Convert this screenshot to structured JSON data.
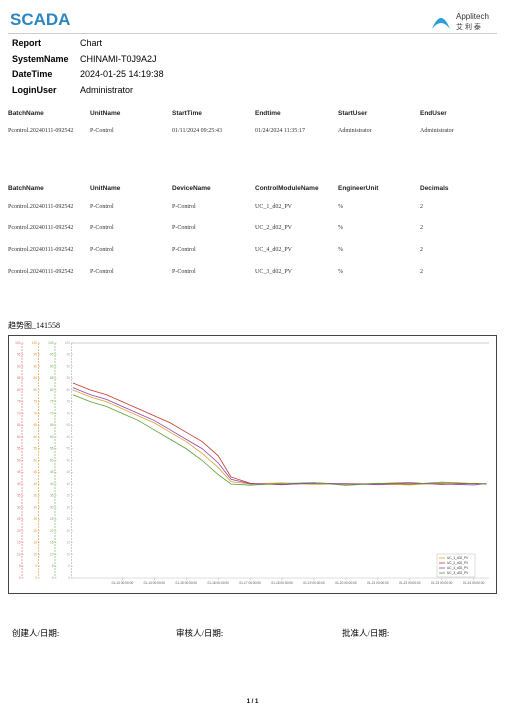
{
  "header": {
    "title": "SCADA",
    "logo_text": "Applitech",
    "logo_subtext": "艾 利 泰"
  },
  "info": [
    {
      "label": "Report",
      "value": "Chart"
    },
    {
      "label": "SystemName",
      "value": "CHINAMI-T0J9A2J"
    },
    {
      "label": "DateTime",
      "value": "2024-01-25  14:19:38"
    },
    {
      "label": "LoginUser",
      "value": "Administrator"
    }
  ],
  "batch_table": {
    "columns": [
      "BatchName",
      "UnitName",
      "StartTime",
      "Endtime",
      "StartUser",
      "EndUser"
    ],
    "rows": [
      [
        "Pcontrol.20240111-092542",
        "P-Control",
        "01/11/2024 09:25:43",
        "01/24/2024 11:35:17",
        "Administrator",
        "Administrator"
      ]
    ]
  },
  "device_table": {
    "columns": [
      "BatchName",
      "UnitName",
      "DeviceName",
      "ControlModuleName",
      "EngineerUnit",
      "Decimals"
    ],
    "rows": [
      [
        "Pcontrol.20240111-092542",
        "P-Control",
        "P-Control",
        "UC_1_d02_PV",
        "%",
        "2"
      ],
      [
        "Pcontrol.20240111-092542",
        "P-Control",
        "P-Control",
        "UC_2_d02_PV",
        "%",
        "2"
      ],
      [
        "Pcontrol.20240111-092542",
        "P-Control",
        "P-Control",
        "UC_4_d02_PV",
        "%",
        "2"
      ],
      [
        "Pcontrol.20240111-092542",
        "P-Control",
        "P-Control",
        "UC_3_d02_PV",
        "%",
        "2"
      ]
    ]
  },
  "chart_title": "趋势图_141558",
  "chart_data": {
    "type": "line",
    "x": [
      11.45,
      12,
      12.5,
      13,
      13.5,
      14,
      14.5,
      15,
      15.5,
      16,
      16.4,
      17,
      18,
      19,
      20,
      21,
      22,
      23,
      24,
      24.4
    ],
    "series": [
      {
        "name": "UC_1_d02_PV",
        "color": "#e0a030",
        "values": [
          80,
          77,
          75,
          72,
          69,
          66,
          62,
          58,
          53,
          47,
          41,
          40,
          40.5,
          39.8,
          40.2,
          40,
          39.6,
          40.4,
          40.1,
          40
        ]
      },
      {
        "name": "UC_2_d02_PV",
        "color": "#c0392b",
        "values": [
          83,
          80,
          78,
          75,
          72,
          69,
          66,
          62,
          58,
          52,
          43,
          40.3,
          39.7,
          40.5,
          39.9,
          40.2,
          40.6,
          39.8,
          40.3,
          40.1
        ]
      },
      {
        "name": "UC_4_d02_PV",
        "color": "#8e44ad",
        "values": [
          81,
          78,
          76,
          73,
          70,
          67,
          63,
          59,
          55,
          49,
          42,
          40.1,
          39.8,
          40.3,
          40.1,
          39.7,
          40.4,
          40,
          39.6,
          40.2
        ]
      },
      {
        "name": "UC_3_d02_PV",
        "color": "#5a9e3a",
        "values": [
          78,
          75,
          73,
          70,
          67,
          63,
          59,
          55,
          50,
          44,
          40,
          39.5,
          40.2,
          40.6,
          39.4,
          40.3,
          39.9,
          40.8,
          40.2,
          39.9
        ]
      }
    ],
    "xlim": [
      11.39,
      24.48
    ],
    "xticks": [
      {
        "value": 13,
        "label": "01-13 00:00:00"
      },
      {
        "value": 14,
        "label": "01-14 00:00:00"
      },
      {
        "value": 15,
        "label": "01-15 00:00:00"
      },
      {
        "value": 16,
        "label": "01-16 00:00:00"
      },
      {
        "value": 17,
        "label": "01-17 00:00:00"
      },
      {
        "value": 18,
        "label": "01-18 00:00:00"
      },
      {
        "value": 19,
        "label": "01-19 00:00:00"
      },
      {
        "value": 20,
        "label": "01-20 00:00:00"
      },
      {
        "value": 21,
        "label": "01-21 00:00:00"
      },
      {
        "value": 22,
        "label": "01-22 00:00:00"
      },
      {
        "value": 23,
        "label": "01-23 00:00:00"
      },
      {
        "value": 24,
        "label": "01-24 00:00:00"
      }
    ],
    "ylim": [
      0,
      100
    ],
    "yticks": [
      0,
      5,
      10,
      15,
      20,
      25,
      30,
      35,
      40,
      45,
      50,
      55,
      60,
      65,
      70,
      75,
      80,
      85,
      90,
      95,
      100
    ],
    "axis_colors": [
      "#e06666",
      "#e69138",
      "#6aa84f",
      "#aaaaaa"
    ],
    "legend": "lower right"
  },
  "signatures": [
    "创建人/日期:",
    "审核人/日期:",
    "批准人/日期:"
  ],
  "page_number": "1 / 1"
}
